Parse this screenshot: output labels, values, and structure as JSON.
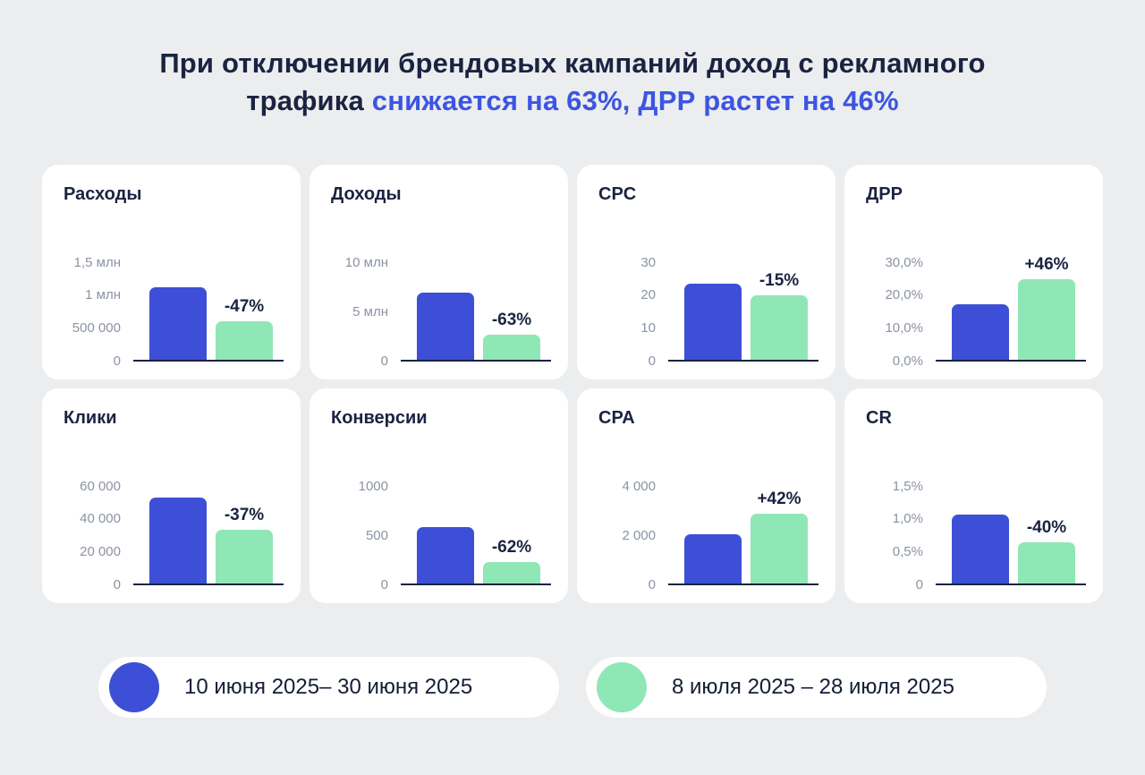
{
  "title": {
    "line1": "При отключении брендовых кампаний доход с рекламного",
    "line2_dark": "трафика",
    "line2_accent": "снижается на 63%, ДРР растет на 46%"
  },
  "colors": {
    "background": "#ecedef",
    "card": "#ffffff",
    "dark_text": "#1a2340",
    "accent_text": "#3c55e2",
    "muted_text": "#8b93a1",
    "bar_blue": "#3d4fd6",
    "bar_green": "#8fe7b5"
  },
  "chart_data": {
    "type": "bar",
    "legend": [
      {
        "label": "10 июня 2025– 30 июня 2025",
        "color": "#3d4fd6"
      },
      {
        "label": "8 июля 2025 – 28 июля 2025",
        "color": "#8fe7b5"
      }
    ],
    "charts": [
      {
        "title": "Расходы",
        "ymax": 1.5,
        "ticks": [
          {
            "label": "1,5 млн",
            "value": 1.5
          },
          {
            "label": "1 млн",
            "value": 1
          },
          {
            "label": "500 000",
            "value": 0.5
          },
          {
            "label": "0",
            "value": 0
          }
        ],
        "values": [
          1.1,
          0.58
        ],
        "delta": "-47%"
      },
      {
        "title": "Доходы",
        "ymax": 10,
        "ticks": [
          {
            "label": "10 млн",
            "value": 10
          },
          {
            "label": "5 млн",
            "value": 5
          },
          {
            "label": "0",
            "value": 0
          }
        ],
        "values": [
          6.8,
          2.5
        ],
        "delta": "-63%"
      },
      {
        "title": "CPC",
        "ymax": 30,
        "ticks": [
          {
            "label": "30",
            "value": 30
          },
          {
            "label": "20",
            "value": 20
          },
          {
            "label": "10",
            "value": 10
          },
          {
            "label": "0",
            "value": 0
          }
        ],
        "values": [
          23,
          19.5
        ],
        "delta": "-15%"
      },
      {
        "title": "ДРР",
        "ymax": 30,
        "ticks": [
          {
            "label": "30,0%",
            "value": 30
          },
          {
            "label": "20,0%",
            "value": 20
          },
          {
            "label": "10,0%",
            "value": 10
          },
          {
            "label": "0,0%",
            "value": 0
          }
        ],
        "values": [
          16.8,
          24.5
        ],
        "delta": "+46%"
      },
      {
        "title": "Клики",
        "ymax": 60000,
        "ticks": [
          {
            "label": "60 000",
            "value": 60000
          },
          {
            "label": "40 000",
            "value": 40000
          },
          {
            "label": "20 000",
            "value": 20000
          },
          {
            "label": "0",
            "value": 0
          }
        ],
        "values": [
          52000,
          32800
        ],
        "delta": "-37%"
      },
      {
        "title": "Конверсии",
        "ymax": 1000,
        "ticks": [
          {
            "label": "1000",
            "value": 1000
          },
          {
            "label": "500",
            "value": 500
          },
          {
            "label": "0",
            "value": 0
          }
        ],
        "values": [
          570,
          217
        ],
        "delta": "-62%"
      },
      {
        "title": "CPA",
        "ymax": 4000,
        "ticks": [
          {
            "label": "4 000",
            "value": 4000
          },
          {
            "label": "2 000",
            "value": 2000
          },
          {
            "label": "0",
            "value": 0
          }
        ],
        "values": [
          1980,
          2810
        ],
        "delta": "+42%"
      },
      {
        "title": "CR",
        "ymax": 1.5,
        "ticks": [
          {
            "label": "1,5%",
            "value": 1.5
          },
          {
            "label": "1,0%",
            "value": 1
          },
          {
            "label": "0,5%",
            "value": 0.5
          },
          {
            "label": "0",
            "value": 0
          }
        ],
        "values": [
          1.05,
          0.63
        ],
        "delta": "-40%"
      }
    ]
  }
}
